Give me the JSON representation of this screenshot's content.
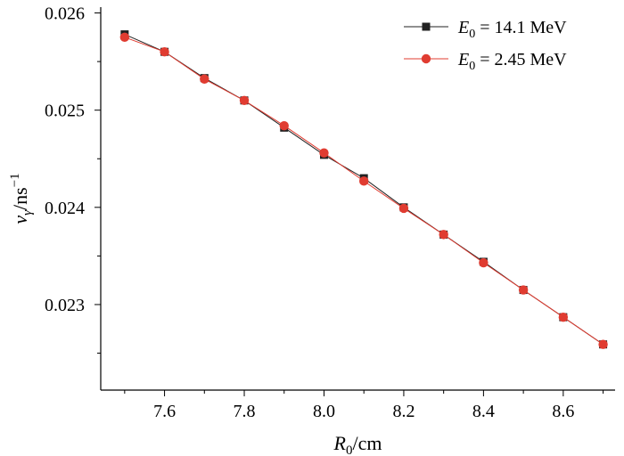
{
  "chart_data": {
    "type": "line",
    "x_label_main": "R",
    "x_label_sub": "0",
    "x_label_unit": "/cm",
    "y_label_main": "v",
    "y_label_sub": "γ",
    "y_label_unit": "/ns",
    "y_label_exp": "−1",
    "xlim": [
      7.44,
      8.73
    ],
    "ylim": [
      0.02212,
      0.02606
    ],
    "x_ticks": [
      "7.6",
      "7.8",
      "8.0",
      "8.2",
      "8.4",
      "8.6"
    ],
    "y_ticks": [
      "0.023",
      "0.024",
      "0.025",
      "0.026"
    ],
    "x": [
      7.5,
      7.6,
      7.7,
      7.8,
      7.9,
      8.0,
      8.1,
      8.2,
      8.3,
      8.4,
      8.5,
      8.6,
      8.7
    ],
    "series": [
      {
        "legend_main": "E",
        "legend_sub": "0",
        "legend_rest": " = 14.1 MeV",
        "color": "#222222",
        "marker": "square",
        "values": [
          0.02578,
          0.0256,
          0.02533,
          0.0251,
          0.02482,
          0.02454,
          0.0243,
          0.024,
          0.02372,
          0.02344,
          0.02315,
          0.02287,
          0.02259
        ]
      },
      {
        "legend_main": "E",
        "legend_sub": "0",
        "legend_rest": " = 2.45 MeV",
        "color": "#e03c31",
        "marker": "circle",
        "values": [
          0.02575,
          0.0256,
          0.02532,
          0.0251,
          0.02484,
          0.02456,
          0.02427,
          0.02399,
          0.02372,
          0.02343,
          0.02315,
          0.02287,
          0.02259
        ]
      }
    ]
  }
}
